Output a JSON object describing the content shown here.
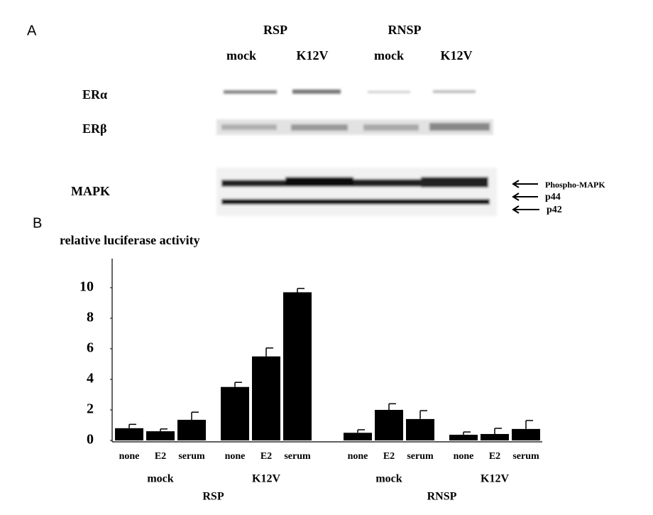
{
  "panel_a": {
    "label": "A",
    "groups": [
      "RSP",
      "RNSP"
    ],
    "lanes": [
      "mock",
      "K12V",
      "mock",
      "K12V"
    ],
    "rows": [
      "ERα",
      "ERβ",
      "MAPK"
    ],
    "bands": [
      "Phospho-MAPK",
      "p44",
      "p42"
    ]
  },
  "chart_data": {
    "type": "bar",
    "panel_label": "B",
    "y_label": "relative luciferase activity",
    "categories": [
      "none",
      "E2",
      "serum",
      "none",
      "E2",
      "serum",
      "none",
      "E2",
      "serum",
      "none",
      "E2",
      "serum"
    ],
    "groups": [
      "mock",
      "K12V",
      "mock",
      "K12V"
    ],
    "supergroups": [
      "RSP",
      "RNSP"
    ],
    "series": [
      {
        "color": "#000000",
        "values": [
          0.8,
          0.6,
          1.35,
          3.5,
          5.5,
          9.7,
          0.5,
          2.0,
          1.4,
          0.37,
          0.42,
          0.75
        ],
        "errors": [
          0.25,
          0.15,
          0.5,
          0.3,
          0.55,
          0.25,
          0.2,
          0.4,
          0.55,
          0.18,
          0.37,
          0.55
        ]
      }
    ],
    "ylim": [
      0,
      12
    ],
    "yticks": [
      0,
      2,
      4,
      6,
      8,
      10
    ]
  }
}
